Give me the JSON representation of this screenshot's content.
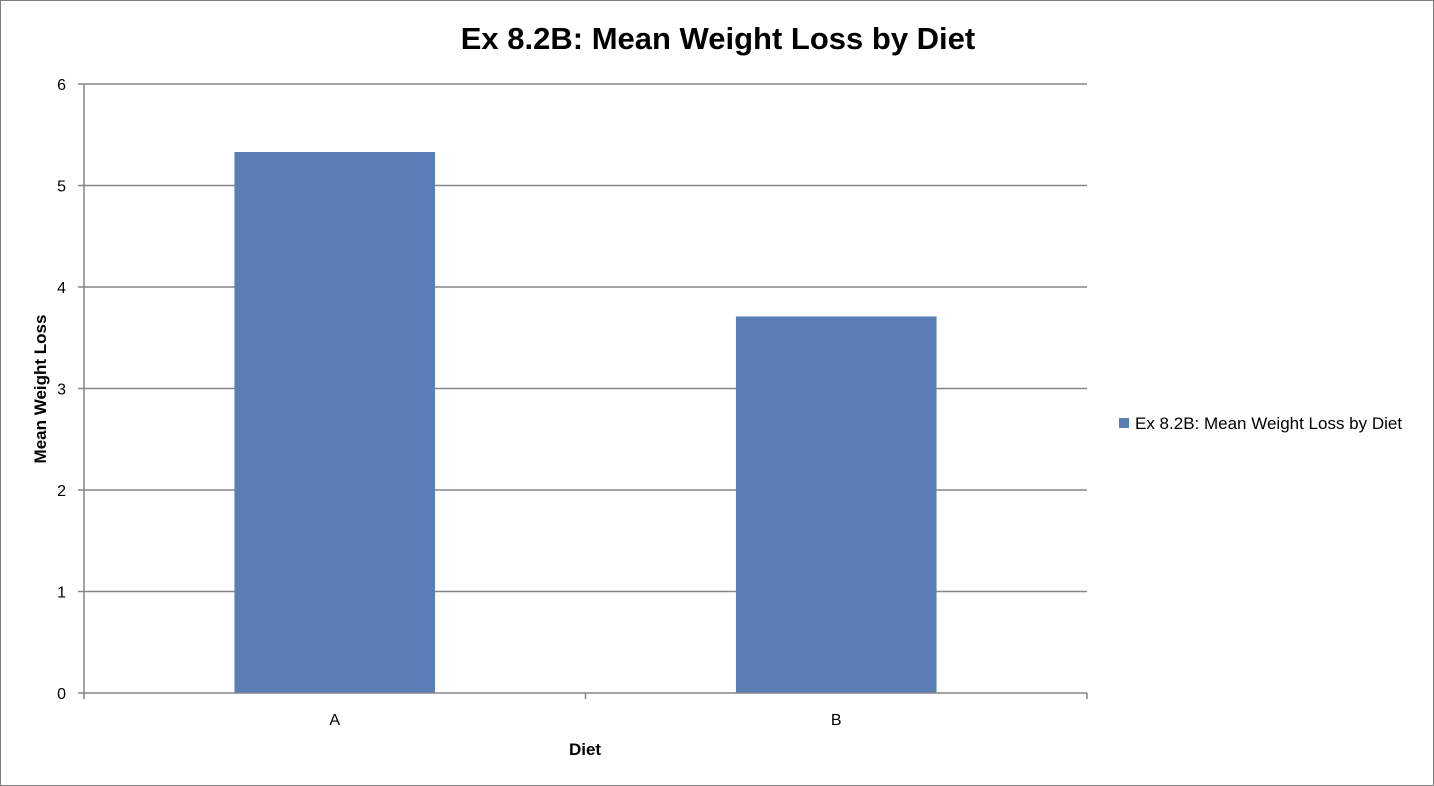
{
  "colors": {
    "bar": "#5a7fb7",
    "grid": "#868686",
    "axis": "#868686"
  },
  "chart_data": {
    "type": "bar",
    "title": "Ex 8.2B: Mean Weight Loss by Diet",
    "xlabel": "Diet",
    "ylabel": "Mean Weight Loss",
    "categories": [
      "A",
      "B"
    ],
    "series": [
      {
        "name": "Ex 8.2B: Mean Weight Loss by Diet",
        "values": [
          5.33,
          3.71
        ]
      }
    ],
    "ylim": [
      0,
      6
    ],
    "yticks": [
      "0",
      "1",
      "2",
      "3",
      "4",
      "5",
      "6"
    ],
    "grid": true,
    "legend": "right"
  }
}
